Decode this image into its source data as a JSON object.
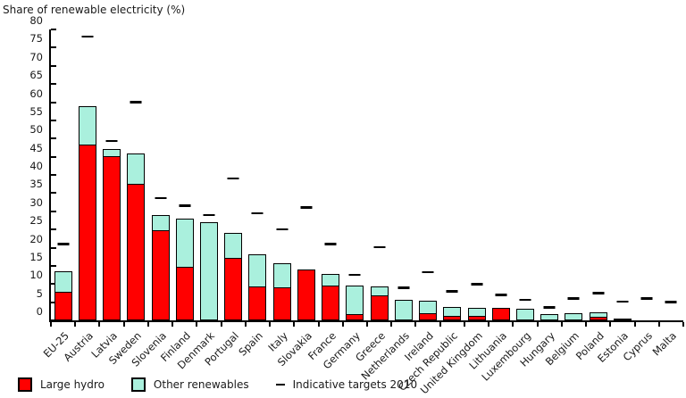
{
  "chart_data": {
    "type": "bar",
    "stacked": true,
    "title": "Share of renewable electricity (%)",
    "xlabel": "",
    "ylabel": "",
    "ylim": [
      0,
      80
    ],
    "ytick_step": 5,
    "grid": false,
    "legend_position": "bottom-left",
    "categories": [
      "EU-25",
      "Austria",
      "Latvia",
      "Sweden",
      "Slovenia",
      "Finland",
      "Denmark",
      "Portugal",
      "Spain",
      "Italy",
      "Slovakia",
      "France",
      "Germany",
      "Greece",
      "Netherlands",
      "Ireland",
      "Czech Republic",
      "United Kingdom",
      "Lithuania",
      "Luxembourg",
      "Hungary",
      "Belgium",
      "Poland",
      "Estonia",
      "Cyprus",
      "Malta"
    ],
    "series": [
      {
        "name": "Large hydro",
        "color": "#ff0000",
        "values": [
          8,
          48.6,
          45.3,
          37.6,
          25,
          14.9,
          0,
          17.4,
          9.4,
          9.3,
          14.1,
          9.8,
          1.8,
          7,
          0,
          2,
          1.4,
          1.5,
          3.4,
          0,
          0,
          0,
          1.2,
          0,
          0,
          0
        ]
      },
      {
        "name": "Other renewables",
        "color": "#aaf0dd",
        "values": [
          5.6,
          10.2,
          1.9,
          8.2,
          4,
          13.2,
          26.9,
          6.7,
          8.7,
          6.5,
          0,
          2.9,
          7.8,
          2.4,
          5.6,
          3.3,
          2.4,
          1.9,
          0,
          3.2,
          1.8,
          2,
          0.9,
          0.6,
          0,
          0
        ]
      }
    ],
    "targets": {
      "name": "Indicative targets 2010",
      "color": "#000000",
      "values": [
        21,
        78.1,
        49.3,
        60,
        33.6,
        31.5,
        29,
        39,
        29.4,
        25,
        31,
        21,
        12.5,
        20.1,
        9,
        13.2,
        8,
        10,
        7,
        5.7,
        3.6,
        6,
        7.5,
        5.1,
        6,
        5
      ]
    }
  }
}
